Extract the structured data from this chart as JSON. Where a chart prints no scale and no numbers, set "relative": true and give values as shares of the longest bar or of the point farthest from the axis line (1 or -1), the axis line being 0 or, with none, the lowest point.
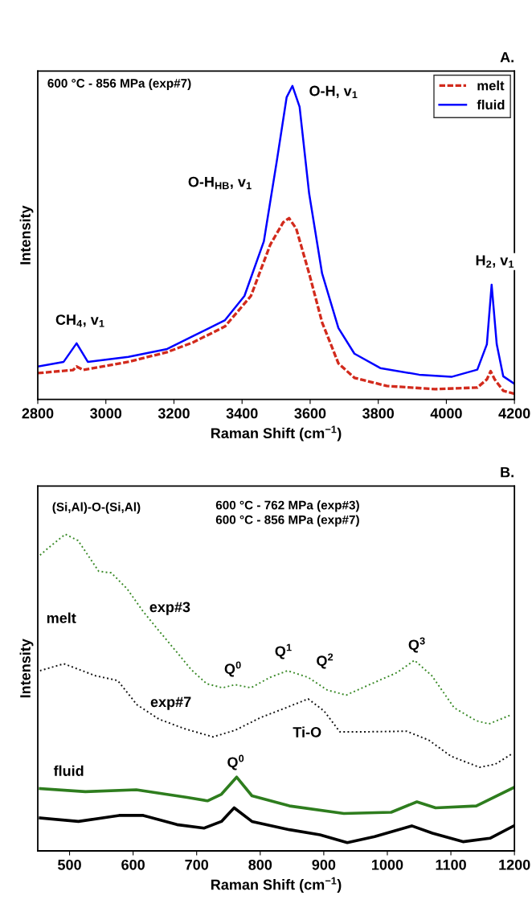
{
  "chart_data": [
    {
      "type": "line",
      "title": "A.",
      "xlabel": "Raman Shift (cm$^{−1}$)",
      "ylabel": "Intensity",
      "relative": true,
      "xlim": [
        2800,
        4200
      ],
      "xticks": [
        2800,
        3000,
        3200,
        3400,
        3600,
        3800,
        4000,
        4200
      ],
      "legend": "top right",
      "grid": false,
      "series": [
        {
          "name": "melt",
          "color": "#d22a1c",
          "line_style": "dashed",
          "x": [
            2800,
            2904,
            2914,
            2933,
            3066,
            3180,
            3256,
            3350,
            3426,
            3483,
            3521,
            3538,
            3559,
            3597,
            3635,
            3683,
            3730,
            3825,
            3967,
            4091,
            4119,
            4130,
            4142,
            4167,
            4200
          ],
          "values": [
            0.084,
            0.094,
            0.105,
            0.094,
            0.12,
            0.151,
            0.182,
            0.233,
            0.33,
            0.494,
            0.565,
            0.578,
            0.545,
            0.402,
            0.246,
            0.115,
            0.069,
            0.043,
            0.033,
            0.038,
            0.064,
            0.09,
            0.064,
            0.028,
            0.018
          ]
        },
        {
          "name": "fluid",
          "color": "#0000ff",
          "line_style": "solid",
          "x": [
            2800,
            2876,
            2914,
            2947,
            3066,
            3180,
            3256,
            3350,
            3407,
            3464,
            3502,
            3531,
            3548,
            3569,
            3597,
            3635,
            3683,
            3730,
            3806,
            3920,
            4015,
            4091,
            4119,
            4133,
            4148,
            4167,
            4200
          ],
          "values": [
            0.105,
            0.12,
            0.179,
            0.12,
            0.136,
            0.161,
            0.202,
            0.253,
            0.33,
            0.504,
            0.76,
            0.964,
            1.0,
            0.933,
            0.657,
            0.402,
            0.228,
            0.146,
            0.1,
            0.079,
            0.072,
            0.095,
            0.176,
            0.366,
            0.176,
            0.074,
            0.05
          ]
        }
      ],
      "annotations": [
        "600 °C - 856 MPa (exp#7)",
        "O-H, v$_{1}$",
        "O-H$_{HB}$, v$_{1}$",
        "CH$_{4}$, v$_{1}$",
        "H$_{2}$, v$_{1}$"
      ]
    },
    {
      "type": "line",
      "title": "B.",
      "xlabel": "Raman Shift (cm$^{−1}$)",
      "ylabel": "Intensity",
      "relative": true,
      "xlim": [
        450,
        1200
      ],
      "xticks": [
        500,
        600,
        700,
        800,
        900,
        1000,
        1100,
        1200
      ],
      "grid": false,
      "series": [
        {
          "color": "#3a8a28",
          "line_style": "dotted",
          "x": [
            453.5,
            471,
            493.4,
            513.4,
            545.9,
            565.8,
            590.8,
            615.8,
            640.7,
            665.7,
            690.7,
            715.6,
            740.6,
            760.6,
            785.5,
            815.5,
            843,
            875.4,
            905.4,
            935.3,
            975.3,
            1015.2,
            1042.7,
            1070.1,
            1105.1,
            1140,
            1160,
            1195
          ],
          "values": [
            0.934,
            0.964,
            1.0,
            0.98,
            0.883,
            0.878,
            0.827,
            0.756,
            0.695,
            0.635,
            0.574,
            0.528,
            0.515,
            0.525,
            0.515,
            0.548,
            0.569,
            0.548,
            0.508,
            0.492,
            0.528,
            0.563,
            0.602,
            0.553,
            0.452,
            0.411,
            0.401,
            0.43
          ]
        },
        {
          "color": "#111111",
          "line_style": "dotted",
          "x": [
            453.5,
            491,
            540.9,
            575.8,
            605.8,
            640.7,
            680.7,
            725.6,
            760.6,
            800.5,
            840.5,
            875.4,
            900.4,
            925.3,
            965.3,
            1030.2,
            1065.1,
            1100.1,
            1145,
            1170,
            1195
          ],
          "values": [
            0.569,
            0.591,
            0.553,
            0.538,
            0.462,
            0.416,
            0.386,
            0.36,
            0.381,
            0.421,
            0.452,
            0.48,
            0.442,
            0.376,
            0.376,
            0.378,
            0.35,
            0.299,
            0.264,
            0.274,
            0.305
          ]
        },
        {
          "color": "#2e7d1e",
          "line_style": "solid",
          "x": [
            454,
            525,
            605,
            685,
            717,
            739,
            763,
            787,
            846,
            931.5,
            1006,
            1046.5,
            1076,
            1140,
            1199
          ],
          "values": [
            0.197,
            0.187,
            0.193,
            0.169,
            0.158,
            0.179,
            0.233,
            0.174,
            0.142,
            0.118,
            0.122,
            0.155,
            0.136,
            0.142,
            0.2
          ]
        },
        {
          "color": "#000000",
          "line_style": "solid",
          "x": [
            454,
            514,
            578,
            616,
            669,
            712,
            739,
            759,
            787,
            846,
            894,
            937,
            980,
            1038.5,
            1071,
            1119,
            1161.5,
            1199
          ],
          "values": [
            0.104,
            0.093,
            0.112,
            0.112,
            0.083,
            0.072,
            0.093,
            0.136,
            0.093,
            0.067,
            0.051,
            0.026,
            0.045,
            0.079,
            0.056,
            0.029,
            0.04,
            0.079
          ]
        }
      ],
      "annotations": [
        "(Si,Al)-O-(Si,Al)",
        "600 °C - 762 MPa (exp#3)",
        "600 °C - 856 MPa (exp#7)",
        "melt",
        "exp#3",
        "exp#7",
        "Q$^{0}$",
        "Q$^{1}$",
        "Q$^{2}$",
        "Q$^{3}$",
        "Ti-O",
        "fluid",
        "Q$^{0}$"
      ]
    }
  ]
}
